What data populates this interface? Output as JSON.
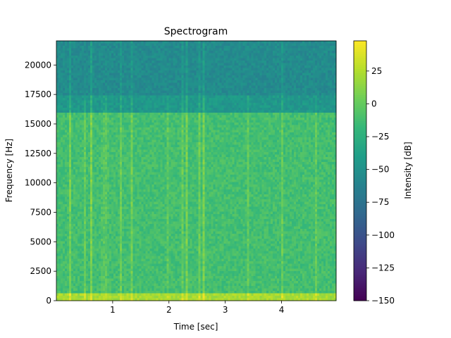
{
  "chart_data": {
    "type": "heatmap",
    "title": "Spectrogram",
    "xlabel": "Time [sec]",
    "ylabel": "Frequency [Hz]",
    "xlim": [
      0.0,
      4.97
    ],
    "ylim": [
      0,
      22050
    ],
    "x_ticks": [
      1,
      2,
      3,
      4
    ],
    "x_tick_labels": [
      "1",
      "2",
      "3",
      "4"
    ],
    "y_ticks": [
      0,
      2500,
      5000,
      7500,
      10000,
      12500,
      15000,
      17500,
      20000
    ],
    "y_tick_labels": [
      "0",
      "2500",
      "5000",
      "7500",
      "10000",
      "12500",
      "15000",
      "17500",
      "20000"
    ],
    "colorbar": {
      "label": "Intensity [dB]",
      "colormap": "viridis",
      "range": [
        -150,
        48
      ],
      "ticks": [
        -150,
        -125,
        -100,
        -75,
        -50,
        -25,
        0,
        25
      ],
      "tick_labels": [
        "−150",
        "−125",
        "−100",
        "−75",
        "−50",
        "−25",
        "0",
        "25"
      ]
    },
    "bands": [
      {
        "freq_range": [
          0,
          600
        ],
        "intensity_db": 22
      },
      {
        "freq_range": [
          600,
          16000
        ],
        "intensity_db": -12
      },
      {
        "freq_range": [
          16000,
          17500
        ],
        "intensity_db": -45
      },
      {
        "freq_range": [
          17500,
          22050
        ],
        "intensity_db": -55
      }
    ],
    "transients_sec": [
      0.24,
      0.52,
      0.62,
      0.83,
      0.9,
      1.14,
      1.33,
      1.99,
      2.25,
      2.32,
      2.55,
      2.62,
      3.42,
      4.0,
      4.6
    ]
  }
}
